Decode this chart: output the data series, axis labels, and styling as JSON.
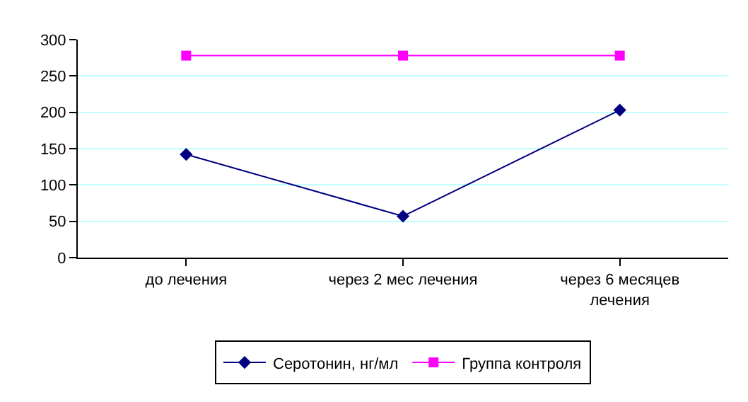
{
  "chart_data": {
    "type": "line",
    "categories": [
      "до лечения",
      "через 2 мес лечения",
      "через 6 месяцев лечения"
    ],
    "series": [
      {
        "name": "Серотонин, нг/мл",
        "color": "#000080",
        "marker": "diamond",
        "values": [
          142,
          57,
          203
        ]
      },
      {
        "name": "Группа контроля",
        "color": "#ff00ff",
        "marker": "square",
        "values": [
          278,
          278,
          278
        ]
      }
    ],
    "ylim": [
      0,
      300
    ],
    "yticks": [
      0,
      50,
      100,
      150,
      200,
      250,
      300
    ],
    "grid": "y",
    "legend": "bottom",
    "line_style": "solid"
  }
}
